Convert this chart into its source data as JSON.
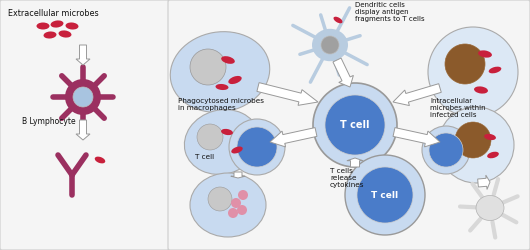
{
  "bg_color": "#f2f2f2",
  "panel_bg": "#f7f7f7",
  "microbe_color": "#c8203c",
  "blymph_color": "#9b3060",
  "blymph_nuc": "#a8c4e0",
  "mac_body": "#c8daf0",
  "mac_nuc": "#aaaaaa",
  "tc_nuc": "#4a7cc9",
  "den_body": "#b8cce0",
  "den_nuc": "#a0a0a0",
  "inf_cell": "#dce8f5",
  "inf_nuc": "#8b5a2b",
  "arrow_fc": "#ffffff",
  "arrow_ec": "#999999",
  "text_color": "#111111",
  "ab_color": "#9b3060",
  "label_title": "Extracellular microbes",
  "label_blymph": "B Lymphocyte",
  "label_phago": "Phagocytosed microbes\nin macrophages",
  "label_tcell": "T cell",
  "label_tcell_center": "T cell",
  "label_tcell_bottom": "T cell",
  "label_dendritic": "Dendritic cells\ndisplay antigen\nfragments to T cells",
  "label_intracellular": "Intracellular\nmicrobes within\ninfected cells",
  "label_cytokines": "T cells\nrelease\ncytokines"
}
